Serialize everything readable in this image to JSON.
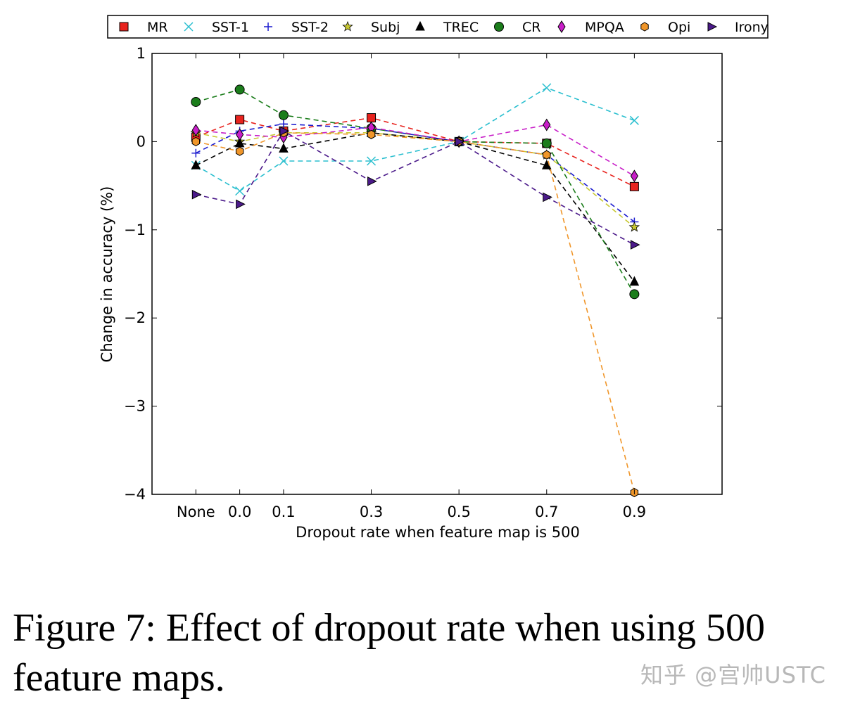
{
  "chart_data": {
    "type": "line",
    "xlabel": "Dropout rate when feature map is 500",
    "ylabel": "Change in accuracy (%)",
    "categories": [
      "None",
      "0.0",
      "0.1",
      "0.3",
      "0.5",
      "0.7",
      "0.9"
    ],
    "category_positions": [
      -0.1,
      0.0,
      0.1,
      0.3,
      0.5,
      0.7,
      0.9
    ],
    "xlim": [
      -0.2,
      1.1
    ],
    "ylim": [
      -4,
      1
    ],
    "yticks": [
      1,
      0,
      -1,
      -2,
      -3,
      -4
    ],
    "ytick_labels": [
      "1",
      "0",
      "−1",
      "−2",
      "−3",
      "−4"
    ],
    "grid": false,
    "legend_position": "top",
    "series": [
      {
        "name": "MR",
        "color": "#e8231e",
        "marker": "square",
        "values": [
          0.05,
          0.25,
          0.12,
          0.27,
          0.0,
          -0.02,
          -0.51
        ]
      },
      {
        "name": "SST-1",
        "color": "#2abfcf",
        "marker": "x",
        "values": [
          -0.27,
          -0.56,
          -0.22,
          -0.22,
          0.0,
          0.61,
          0.24
        ]
      },
      {
        "name": "SST-2",
        "color": "#1c1ccf",
        "marker": "plus",
        "values": [
          -0.13,
          0.12,
          0.2,
          0.15,
          0.0,
          -0.15,
          -0.91
        ]
      },
      {
        "name": "Subj",
        "color": "#c8c832",
        "marker": "star",
        "values": [
          0.1,
          0.0,
          0.1,
          0.1,
          0.0,
          -0.15,
          -0.97
        ]
      },
      {
        "name": "TREC",
        "color": "#000000",
        "marker": "triangle-up",
        "values": [
          -0.27,
          -0.02,
          -0.08,
          0.1,
          0.0,
          -0.27,
          -1.59
        ]
      },
      {
        "name": "CR",
        "color": "#1b7d1b",
        "marker": "circle",
        "values": [
          0.45,
          0.59,
          0.3,
          0.15,
          0.0,
          -0.02,
          -1.73
        ]
      },
      {
        "name": "MPQA",
        "color": "#c81ec8",
        "marker": "diamond",
        "values": [
          0.13,
          0.08,
          0.05,
          0.16,
          0.0,
          0.19,
          -0.39
        ]
      },
      {
        "name": "Opi",
        "color": "#f0962a",
        "marker": "hexagon",
        "values": [
          0.0,
          -0.11,
          0.1,
          0.08,
          0.0,
          -0.15,
          -3.98
        ]
      },
      {
        "name": "Irony",
        "color": "#4b1a8a",
        "marker": "triangle-right",
        "values": [
          -0.6,
          -0.71,
          0.12,
          -0.45,
          0.0,
          -0.63,
          -1.17
        ]
      }
    ]
  },
  "caption": {
    "text": "Figure 7:  Effect of dropout rate when using 500 feature maps."
  },
  "watermark": {
    "text": "知乎 @宫帅USTC"
  }
}
